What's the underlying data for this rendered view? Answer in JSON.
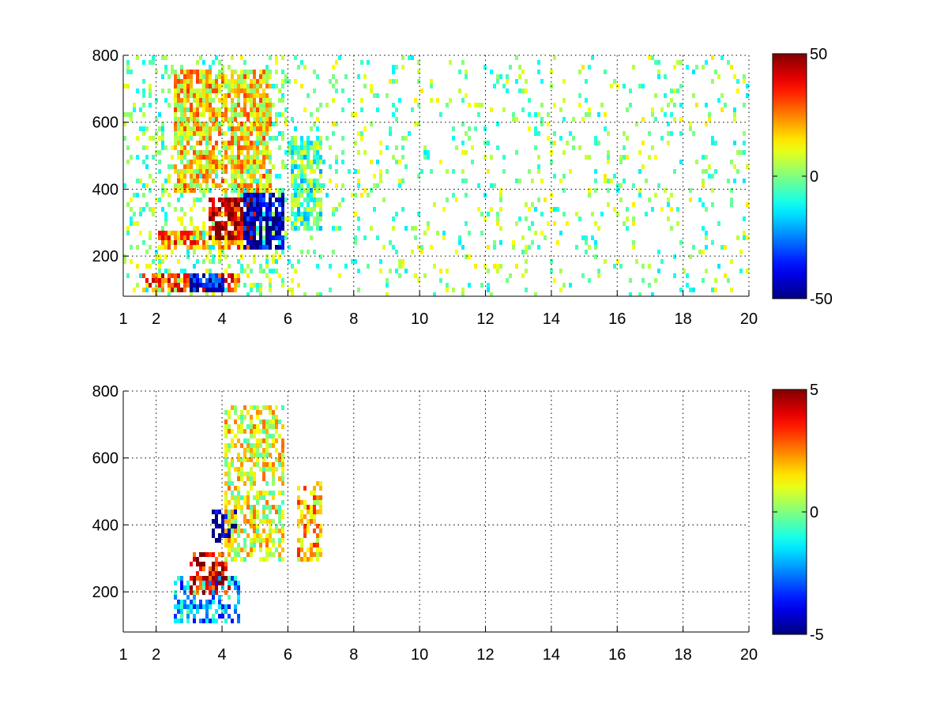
{
  "chart_data": [
    {
      "type": "heatmap",
      "title": "",
      "xlabel": "",
      "ylabel": "",
      "xlim": [
        1,
        20
      ],
      "ylim": [
        80,
        800
      ],
      "x_ticks": [
        1,
        2,
        4,
        6,
        8,
        10,
        12,
        14,
        16,
        18,
        20
      ],
      "x_tick_labels": [
        "1",
        "2",
        "4",
        "6",
        "8",
        "10",
        "12",
        "14",
        "16",
        "18",
        "20"
      ],
      "y_ticks": [
        200,
        400,
        600,
        800
      ],
      "y_tick_labels": [
        "200",
        "400",
        "600",
        "800"
      ],
      "grid": true,
      "colormap": "jet",
      "clim": [
        -50,
        50
      ],
      "colorbar_ticks": [
        -50,
        0,
        50
      ],
      "colorbar_tick_labels": [
        "-50",
        "0",
        "50"
      ],
      "features": [
        {
          "x": [
            1.5,
            4.5
          ],
          "y": [
            100,
            160
          ],
          "value": 30
        },
        {
          "x": [
            2.0,
            5.0
          ],
          "y": [
            220,
            280
          ],
          "value": 25
        },
        {
          "x": [
            3.5,
            5.0
          ],
          "y": [
            250,
            380
          ],
          "value": 45
        },
        {
          "x": [
            4.6,
            5.8
          ],
          "y": [
            220,
            400
          ],
          "value": -45
        },
        {
          "x": [
            3.0,
            4.0
          ],
          "y": [
            100,
            160
          ],
          "value": -40
        },
        {
          "x": [
            2.5,
            5.5
          ],
          "y": [
            400,
            760
          ],
          "value": 15
        },
        {
          "x": [
            6.0,
            7.0
          ],
          "y": [
            280,
            560
          ],
          "value": -5
        }
      ]
    },
    {
      "type": "heatmap",
      "title": "",
      "xlabel": "",
      "ylabel": "",
      "xlim": [
        1,
        20
      ],
      "ylim": [
        80,
        800
      ],
      "x_ticks": [
        1,
        2,
        4,
        6,
        8,
        10,
        12,
        14,
        16,
        18,
        20
      ],
      "x_tick_labels": [
        "1",
        "2",
        "4",
        "6",
        "8",
        "10",
        "12",
        "14",
        "16",
        "18",
        "20"
      ],
      "y_ticks": [
        200,
        400,
        600,
        800
      ],
      "y_tick_labels": [
        "200",
        "400",
        "600",
        "800"
      ],
      "grid": true,
      "colormap": "jet",
      "clim": [
        -5,
        5
      ],
      "colorbar_ticks": [
        -5,
        0,
        5
      ],
      "colorbar_tick_labels": [
        "-5",
        "0",
        "5"
      ],
      "features": [
        {
          "x": [
            2.5,
            4.5
          ],
          "y": [
            120,
            260
          ],
          "value": -2
        },
        {
          "x": [
            3.0,
            4.2
          ],
          "y": [
            200,
            320
          ],
          "value": 4
        },
        {
          "x": [
            3.6,
            4.4
          ],
          "y": [
            360,
            460
          ],
          "value": -5
        },
        {
          "x": [
            4.0,
            5.8
          ],
          "y": [
            300,
            760
          ],
          "value": 1
        },
        {
          "x": [
            6.2,
            7.0
          ],
          "y": [
            300,
            540
          ],
          "value": 2
        }
      ]
    }
  ]
}
